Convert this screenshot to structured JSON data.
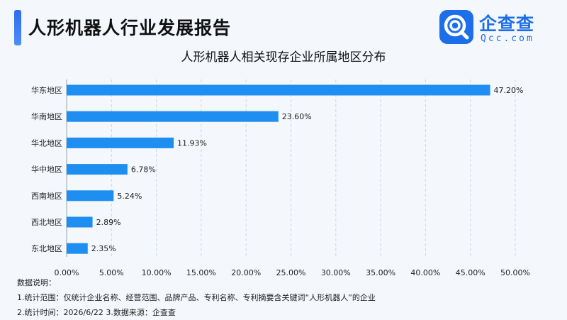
{
  "header": {
    "title": "人形机器人行业发展报告",
    "logo_name": "企查查",
    "logo_sub": "Qcc.com",
    "logo_icon": "qcc-magnifier-icon",
    "accent_color": "#2e6bf0"
  },
  "chart_data": {
    "type": "bar",
    "orientation": "horizontal",
    "title": "人形机器人相关现存企业所属地区分布",
    "categories": [
      "华东地区",
      "华南地区",
      "华北地区",
      "华中地区",
      "西南地区",
      "西北地区",
      "东北地区"
    ],
    "values": [
      47.2,
      23.6,
      11.93,
      6.78,
      5.24,
      2.89,
      2.35
    ],
    "data_labels": [
      "47.20%",
      "23.60%",
      "11.93%",
      "6.78%",
      "5.24%",
      "2.89%",
      "2.35%"
    ],
    "xlim": [
      0,
      50
    ],
    "x_ticks": [
      0,
      5,
      10,
      15,
      20,
      25,
      30,
      35,
      40,
      45,
      50
    ],
    "x_tick_labels": [
      "0.00%",
      "5.00%",
      "10.00%",
      "15.00%",
      "20.00%",
      "25.00%",
      "30.00%",
      "35.00%",
      "40.00%",
      "45.00%",
      "50.00%"
    ],
    "bar_color": "#1e8ef0",
    "grid": "vertical dashed"
  },
  "notes": {
    "heading": "数据说明：",
    "line1": "1.统计范围：仅统计企业名称、经营范围、品牌产品、专利名称、专利摘要含关键词“人形机器人”的企业",
    "line2": "2.统计时间：2026/6/22  3.数据来源：企查查"
  }
}
